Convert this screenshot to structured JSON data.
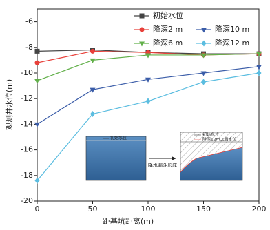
{
  "chart_data": {
    "type": "line",
    "xlabel": "距基坑距离(m)",
    "ylabel": "观测井水位(m)",
    "x": [
      0,
      50,
      100,
      150,
      200
    ],
    "xlim": [
      0,
      200
    ],
    "xticks": [
      0,
      50,
      100,
      150,
      200
    ],
    "ylim": [
      -20,
      -5
    ],
    "yticks": [
      -20,
      -18,
      -16,
      -14,
      -12,
      -10,
      -8,
      -6
    ],
    "series": [
      {
        "name": "初始水位",
        "color": "#444444",
        "marker": "square",
        "values": [
          -8.3,
          -8.2,
          -8.4,
          -8.5,
          -8.5
        ]
      },
      {
        "name": "降深2 m",
        "color": "#e8403a",
        "marker": "circle",
        "values": [
          -9.2,
          -8.3,
          -8.4,
          -8.6,
          -8.5
        ]
      },
      {
        "name": "降深6 m",
        "color": "#62b04a",
        "marker": "triangle-down",
        "values": [
          -10.6,
          -9.0,
          -8.6,
          -8.6,
          -8.5
        ]
      },
      {
        "name": "降深10 m",
        "color": "#3a5ca8",
        "marker": "triangle-down",
        "values": [
          -14.0,
          -11.3,
          -10.5,
          -10.0,
          -9.5
        ]
      },
      {
        "name": "降深12 m",
        "color": "#5bbde0",
        "marker": "diamond",
        "values": [
          -18.4,
          -13.2,
          -12.2,
          -10.7,
          -10.0
        ]
      }
    ],
    "annotations": [
      "初始水位",
      "初始水位",
      "降深12m之后水位",
      "降水漏斗形成"
    ]
  }
}
